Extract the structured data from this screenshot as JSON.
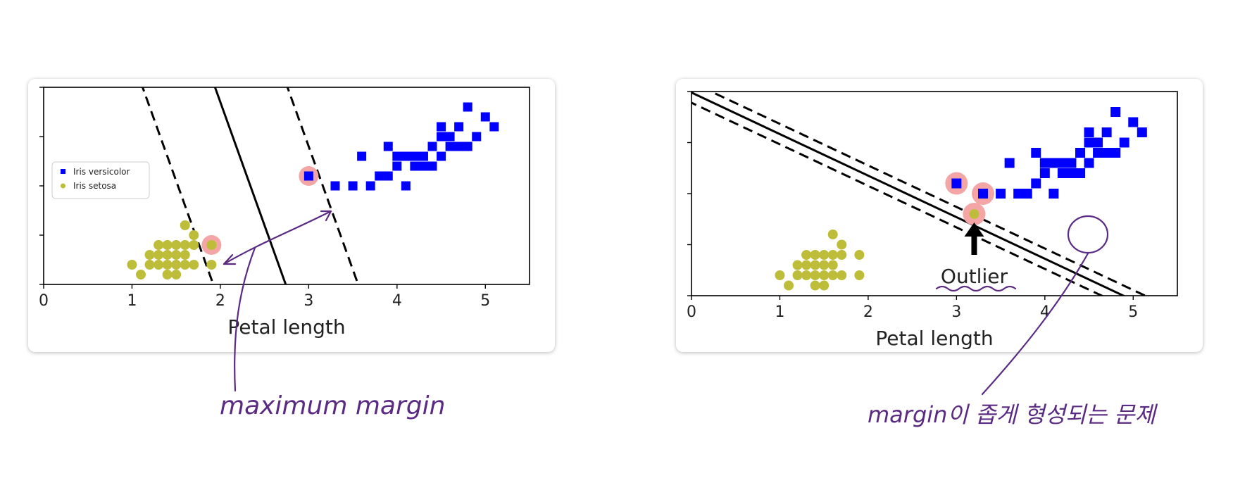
{
  "ink_color": "#5b2a82",
  "versicolor_color": "#0000ff",
  "setosa_color": "#bdbd3a",
  "support_color": "#f4a6a6",
  "annotations": {
    "left_note": "maximum margin",
    "right_note": "margin이 좁게 형성되는 문제"
  },
  "chart_data": [
    {
      "type": "scatter",
      "xlabel": "Petal length",
      "ylabel": "",
      "xlim": [
        0,
        5.5
      ],
      "ylim": [
        0,
        2.0
      ],
      "xticks": [
        0,
        1,
        2,
        3,
        4,
        5
      ],
      "legend": {
        "placement": "left",
        "entries": [
          "Iris versicolor",
          "Iris setosa"
        ]
      },
      "series": [
        {
          "name": "Iris versicolor",
          "marker": "square",
          "points": [
            [
              3.0,
              1.1
            ],
            [
              3.3,
              1.0
            ],
            [
              3.5,
              1.0
            ],
            [
              3.7,
              1.0
            ],
            [
              3.9,
              1.1
            ],
            [
              3.6,
              1.3
            ],
            [
              4.0,
              1.2
            ],
            [
              4.1,
              1.0
            ],
            [
              4.2,
              1.3
            ],
            [
              4.3,
              1.3
            ],
            [
              4.4,
              1.2
            ],
            [
              4.5,
              1.5
            ],
            [
              4.6,
              1.4
            ],
            [
              4.7,
              1.4
            ],
            [
              4.9,
              1.5
            ],
            [
              4.5,
              1.3
            ],
            [
              4.8,
              1.4
            ],
            [
              4.0,
              1.3
            ],
            [
              4.1,
              1.3
            ],
            [
              4.4,
              1.4
            ],
            [
              4.7,
              1.6
            ],
            [
              4.5,
              1.6
            ],
            [
              4.6,
              1.5
            ],
            [
              5.0,
              1.7
            ],
            [
              5.1,
              1.6
            ],
            [
              4.8,
              1.8
            ],
            [
              3.9,
              1.4
            ],
            [
              4.2,
              1.2
            ],
            [
              3.8,
              1.1
            ],
            [
              4.3,
              1.2
            ]
          ]
        },
        {
          "name": "Iris setosa",
          "marker": "circle",
          "points": [
            [
              1.0,
              0.2
            ],
            [
              1.1,
              0.1
            ],
            [
              1.2,
              0.2
            ],
            [
              1.3,
              0.2
            ],
            [
              1.4,
              0.2
            ],
            [
              1.5,
              0.2
            ],
            [
              1.6,
              0.2
            ],
            [
              1.7,
              0.2
            ],
            [
              1.3,
              0.3
            ],
            [
              1.4,
              0.3
            ],
            [
              1.5,
              0.3
            ],
            [
              1.3,
              0.4
            ],
            [
              1.5,
              0.4
            ],
            [
              1.7,
              0.4
            ],
            [
              1.4,
              0.1
            ],
            [
              1.5,
              0.1
            ],
            [
              1.6,
              0.4
            ],
            [
              1.7,
              0.5
            ],
            [
              1.6,
              0.6
            ],
            [
              1.4,
              0.4
            ],
            [
              1.9,
              0.2
            ],
            [
              1.9,
              0.4
            ],
            [
              1.6,
              0.3
            ],
            [
              1.2,
              0.3
            ]
          ]
        }
      ],
      "support_vectors": [
        [
          3.0,
          1.1
        ],
        [
          1.9,
          0.4
        ]
      ],
      "boundary": {
        "w": [
          1.0,
          0.4
        ],
        "b": 2.74,
        "margin_offset": 0.82
      }
    },
    {
      "type": "scatter",
      "xlabel": "Petal length",
      "ylabel": "",
      "xlim": [
        0,
        5.5
      ],
      "ylim": [
        0,
        2.0
      ],
      "xticks": [
        0,
        1,
        2,
        3,
        4,
        5
      ],
      "annotation": {
        "text": "Outlier",
        "point": [
          3.2,
          0.8
        ]
      },
      "series": [
        {
          "name": "Iris versicolor",
          "marker": "square",
          "points": [
            [
              3.0,
              1.1
            ],
            [
              3.3,
              1.0
            ],
            [
              3.5,
              1.0
            ],
            [
              3.7,
              1.0
            ],
            [
              3.9,
              1.1
            ],
            [
              3.6,
              1.3
            ],
            [
              4.0,
              1.2
            ],
            [
              4.1,
              1.0
            ],
            [
              4.2,
              1.3
            ],
            [
              4.3,
              1.3
            ],
            [
              4.4,
              1.2
            ],
            [
              4.5,
              1.5
            ],
            [
              4.6,
              1.4
            ],
            [
              4.7,
              1.4
            ],
            [
              4.9,
              1.5
            ],
            [
              4.5,
              1.3
            ],
            [
              4.8,
              1.4
            ],
            [
              4.0,
              1.3
            ],
            [
              4.1,
              1.3
            ],
            [
              4.4,
              1.4
            ],
            [
              4.7,
              1.6
            ],
            [
              4.5,
              1.6
            ],
            [
              4.6,
              1.5
            ],
            [
              5.0,
              1.7
            ],
            [
              5.1,
              1.6
            ],
            [
              4.8,
              1.8
            ],
            [
              3.9,
              1.4
            ],
            [
              4.2,
              1.2
            ],
            [
              3.8,
              1.0
            ],
            [
              4.3,
              1.2
            ]
          ]
        },
        {
          "name": "Iris setosa",
          "marker": "circle",
          "points": [
            [
              1.0,
              0.2
            ],
            [
              1.1,
              0.1
            ],
            [
              1.2,
              0.2
            ],
            [
              1.3,
              0.2
            ],
            [
              1.4,
              0.2
            ],
            [
              1.5,
              0.2
            ],
            [
              1.6,
              0.2
            ],
            [
              1.7,
              0.2
            ],
            [
              1.3,
              0.3
            ],
            [
              1.4,
              0.3
            ],
            [
              1.5,
              0.3
            ],
            [
              1.3,
              0.4
            ],
            [
              1.5,
              0.4
            ],
            [
              1.7,
              0.4
            ],
            [
              1.4,
              0.1
            ],
            [
              1.5,
              0.1
            ],
            [
              1.6,
              0.4
            ],
            [
              1.7,
              0.5
            ],
            [
              1.6,
              0.6
            ],
            [
              1.4,
              0.4
            ],
            [
              1.9,
              0.2
            ],
            [
              1.9,
              0.4
            ],
            [
              1.6,
              0.3
            ],
            [
              1.2,
              0.3
            ],
            [
              3.2,
              0.8
            ]
          ]
        }
      ],
      "support_vectors": [
        [
          3.0,
          1.1
        ],
        [
          3.3,
          1.0
        ],
        [
          3.2,
          0.8
        ]
      ],
      "boundary": {
        "w": [
          0.407,
          1.0
        ],
        "b": 1.99,
        "margin_offset": 0.1
      }
    }
  ]
}
